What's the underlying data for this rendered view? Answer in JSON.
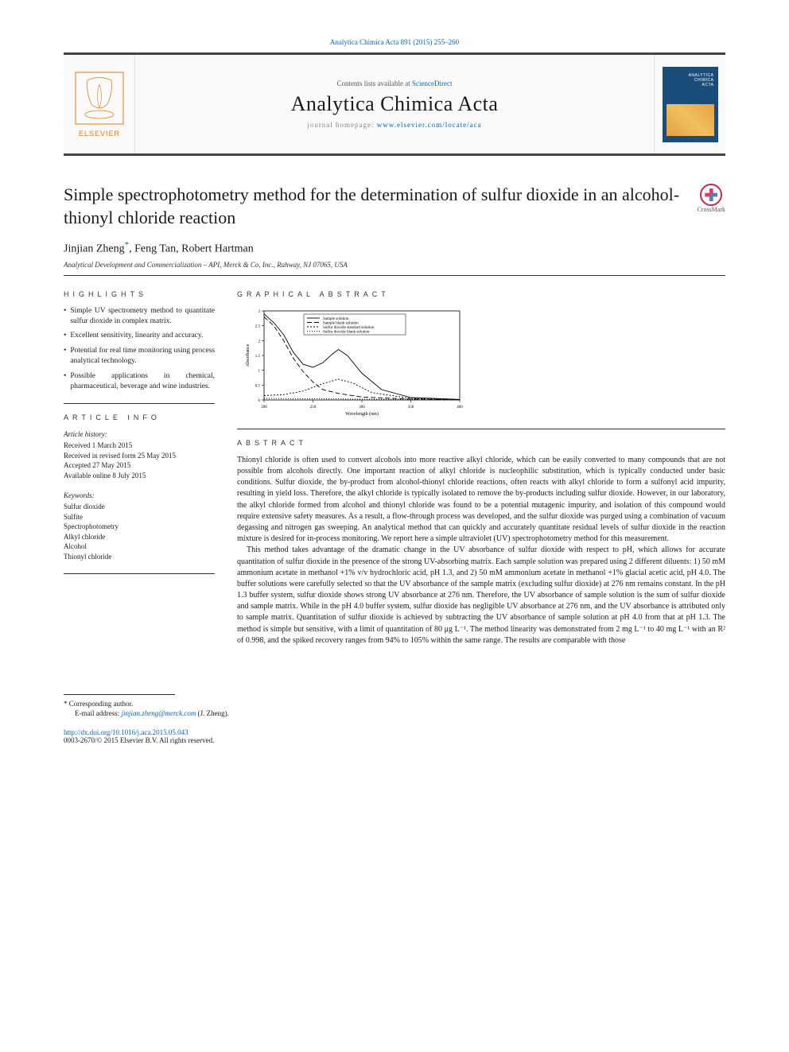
{
  "citation_line": "Analytica Chimica Acta 891 (2015) 255–260",
  "header": {
    "contents_prefix": "Contents lists available at ",
    "contents_link": "ScienceDirect",
    "journal_title": "Analytica Chimica Acta",
    "homepage_prefix": "journal homepage: ",
    "homepage_link": "www.elsevier.com/locate/aca",
    "publisher": "ELSEVIER"
  },
  "crossmark_label": "CrossMark",
  "article": {
    "title": "Simple spectrophotometry method for the determination of sulfur dioxide in an alcohol-thionyl chloride reaction",
    "authors_pre": "Jinjian Zheng",
    "authors_post": ", Feng Tan, Robert Hartman",
    "affiliation": "Analytical Development and Commercialization – API, Merck & Co, Inc., Rahway, NJ 07065, USA"
  },
  "highlights": {
    "heading": "HIGHLIGHTS",
    "items": [
      "Simple UV spectrometry method to quantitate sulfur dioxide in complex matrix.",
      "Excellent sensitivity, linearity and accuracy.",
      "Potential for real time monitoring using process analytical technology.",
      "Possible applications in chemical, pharmaceutical, beverage and wine industries."
    ]
  },
  "article_info": {
    "heading": "ARTICLE INFO",
    "history_hd": "Article history:",
    "received": "Received 1 March 2015",
    "revised": "Received in revised form 25 May 2015",
    "accepted": "Accepted 27 May 2015",
    "online": "Available online 8 July 2015",
    "keywords_hd": "Keywords:",
    "keywords": [
      "Sulfur dioxide",
      "Sulfite",
      "Spectrophotometry",
      "Alkyl chloride",
      "Alcohol",
      "Thionyl chloride"
    ]
  },
  "graphical_abstract": {
    "heading": "GRAPHICAL ABSTRACT",
    "chart": {
      "type": "line",
      "xlabel": "Wavelength (nm)",
      "ylabel": "Absorbance",
      "xlim": [
        200,
        400
      ],
      "ylim": [
        0,
        3
      ],
      "xticks": [
        200,
        250,
        300,
        350,
        400
      ],
      "yticks": [
        0,
        0.5,
        1,
        1.5,
        2,
        2.5,
        3
      ],
      "label_fontsize": 6,
      "tick_fontsize": 5,
      "background_color": "#ffffff",
      "axis_color": "#000000",
      "legend_border": "#000000",
      "legend_fontsize": 5,
      "series": [
        {
          "name": "Sample solution",
          "color": "#000000",
          "dash": "solid",
          "x": [
            200,
            210,
            220,
            230,
            240,
            250,
            260,
            270,
            276,
            285,
            300,
            320,
            350,
            400
          ],
          "y": [
            2.9,
            2.6,
            2.2,
            1.6,
            1.2,
            1.1,
            1.25,
            1.55,
            1.7,
            1.5,
            0.9,
            0.35,
            0.08,
            0.02
          ]
        },
        {
          "name": "Sample blank solution",
          "color": "#000000",
          "dash": "6,3",
          "x": [
            200,
            210,
            220,
            230,
            240,
            250,
            260,
            276,
            300,
            350,
            400
          ],
          "y": [
            2.8,
            2.5,
            2.0,
            1.4,
            0.95,
            0.6,
            0.35,
            0.22,
            0.1,
            0.03,
            0.01
          ]
        },
        {
          "name": "Sulfur dioxide standard solution",
          "color": "#000000",
          "dash": "2,2",
          "x": [
            200,
            220,
            240,
            260,
            276,
            290,
            310,
            350,
            400
          ],
          "y": [
            0.15,
            0.18,
            0.3,
            0.55,
            0.7,
            0.58,
            0.25,
            0.05,
            0.01
          ]
        },
        {
          "name": "Sulfur dioxide blank solution",
          "color": "#000000",
          "dash": "1,2",
          "x": [
            200,
            250,
            300,
            350,
            400
          ],
          "y": [
            0.05,
            0.04,
            0.03,
            0.02,
            0.01
          ]
        }
      ]
    }
  },
  "abstract": {
    "heading": "ABSTRACT",
    "p1": "Thionyl chloride is often used to convert alcohols into more reactive alkyl chloride, which can be easily converted to many compounds that are not possible from alcohols directly. One important reaction of alkyl chloride is nucleophilic substitution, which is typically conducted under basic conditions. Sulfur dioxide, the by-product from alcohol-thionyl chloride reactions, often reacts with alkyl chloride to form a sulfonyl acid impurity, resulting in yield loss. Therefore, the alkyl chloride is typically isolated to remove the by-products including sulfur dioxide. However, in our laboratory, the alkyl chloride formed from alcohol and thionyl chloride was found to be a potential mutagenic impurity, and isolation of this compound would require extensive safety measures. As a result, a flow-through process was developed, and the sulfur dioxide was purged using a combination of vacuum degassing and nitrogen gas sweeping. An analytical method that can quickly and accurately quantitate residual levels of sulfur dioxide in the reaction mixture is desired for in-process monitoring. We report here a simple ultraviolet (UV) spectrophotometry method for this measurement.",
    "p2": "This method takes advantage of the dramatic change in the UV absorbance of sulfur dioxide with respect to pH, which allows for accurate quantitation of sulfur dioxide in the presence of the strong UV-absorbing matrix. Each sample solution was prepared using 2 different diluents: 1) 50 mM ammonium acetate in methanol +1% v/v hydrochloric acid, pH 1.3, and 2) 50 mM ammonium acetate in methanol +1% glacial acetic acid, pH 4.0. The buffer solutions were carefully selected so that the UV absorbance of the sample matrix (excluding sulfur dioxide) at 276 nm remains constant. In the pH 1.3 buffer system, sulfur dioxide shows strong UV absorbance at 276 nm. Therefore, the UV absorbance of sample solution is the sum of sulfur dioxide and sample matrix. While in the pH 4.0 buffer system, sulfur dioxide has negligible UV absorbance at 276 nm, and the UV absorbance is attributed only to sample matrix. Quantitation of sulfur dioxide is achieved by subtracting the UV absorbance of sample solution at pH 4.0 from that at pH 1.3. The method is simple but sensitive, with a limit of quantitation of 80 μg L⁻¹. The method linearity was demonstrated from 2 mg L⁻¹ to 40 mg L⁻¹ with an R² of 0.998, and the spiked recovery ranges from 94% to 105% within the same range. The results are comparable with those"
  },
  "footer": {
    "corr_label": "* Corresponding author.",
    "email_label": "E-mail address: ",
    "email": "jinjian.zheng@merck.com",
    "email_name": " (J. Zheng).",
    "doi": "http://dx.doi.org/10.1016/j.aca.2015.05.043",
    "copyright": "0003-2670/© 2015 Elsevier B.V. All rights reserved."
  }
}
